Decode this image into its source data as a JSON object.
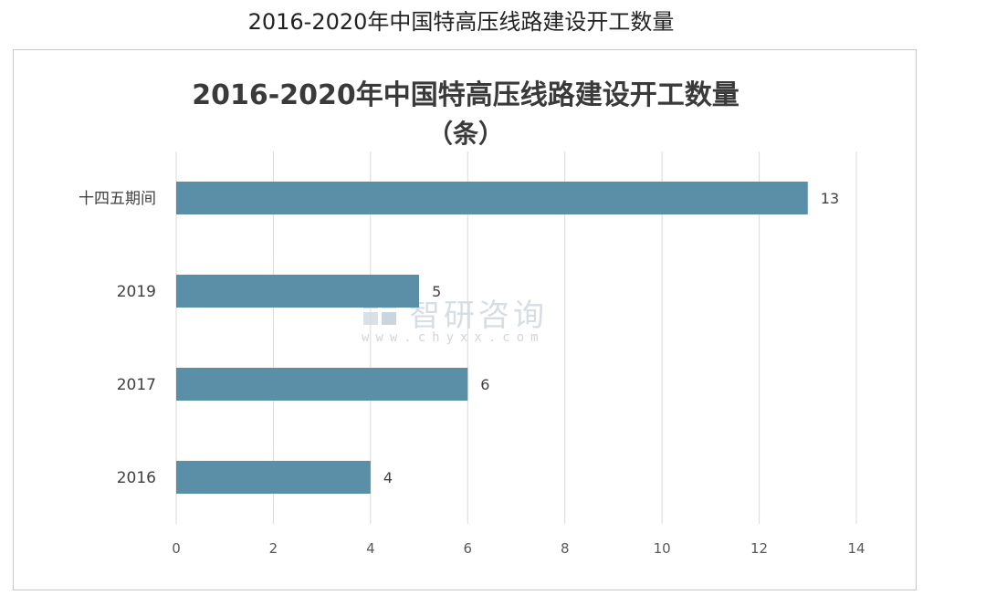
{
  "caption": "2016-2020年中国特高压线路建设开工数量",
  "watermark": {
    "text": "智研咨询",
    "url": "www.chyxx.com"
  },
  "colors": {
    "bar": "#5b8fa8",
    "grid": "#d9d9d9",
    "text": "#404040",
    "title": "#3a3a3a"
  },
  "chart_data": {
    "type": "bar",
    "orientation": "horizontal",
    "title": "2016-2020年中国特高压线路建设开工数量",
    "subtitle": "（条）",
    "categories": [
      "十四五期间",
      "2019",
      "2017",
      "2016"
    ],
    "values": [
      13,
      5,
      6,
      4
    ],
    "xlim": [
      0,
      14
    ],
    "xticks": [
      0,
      2,
      4,
      6,
      8,
      10,
      12,
      14
    ],
    "xlabel": "",
    "ylabel": "",
    "grid": "vertical",
    "data_labels": true
  }
}
